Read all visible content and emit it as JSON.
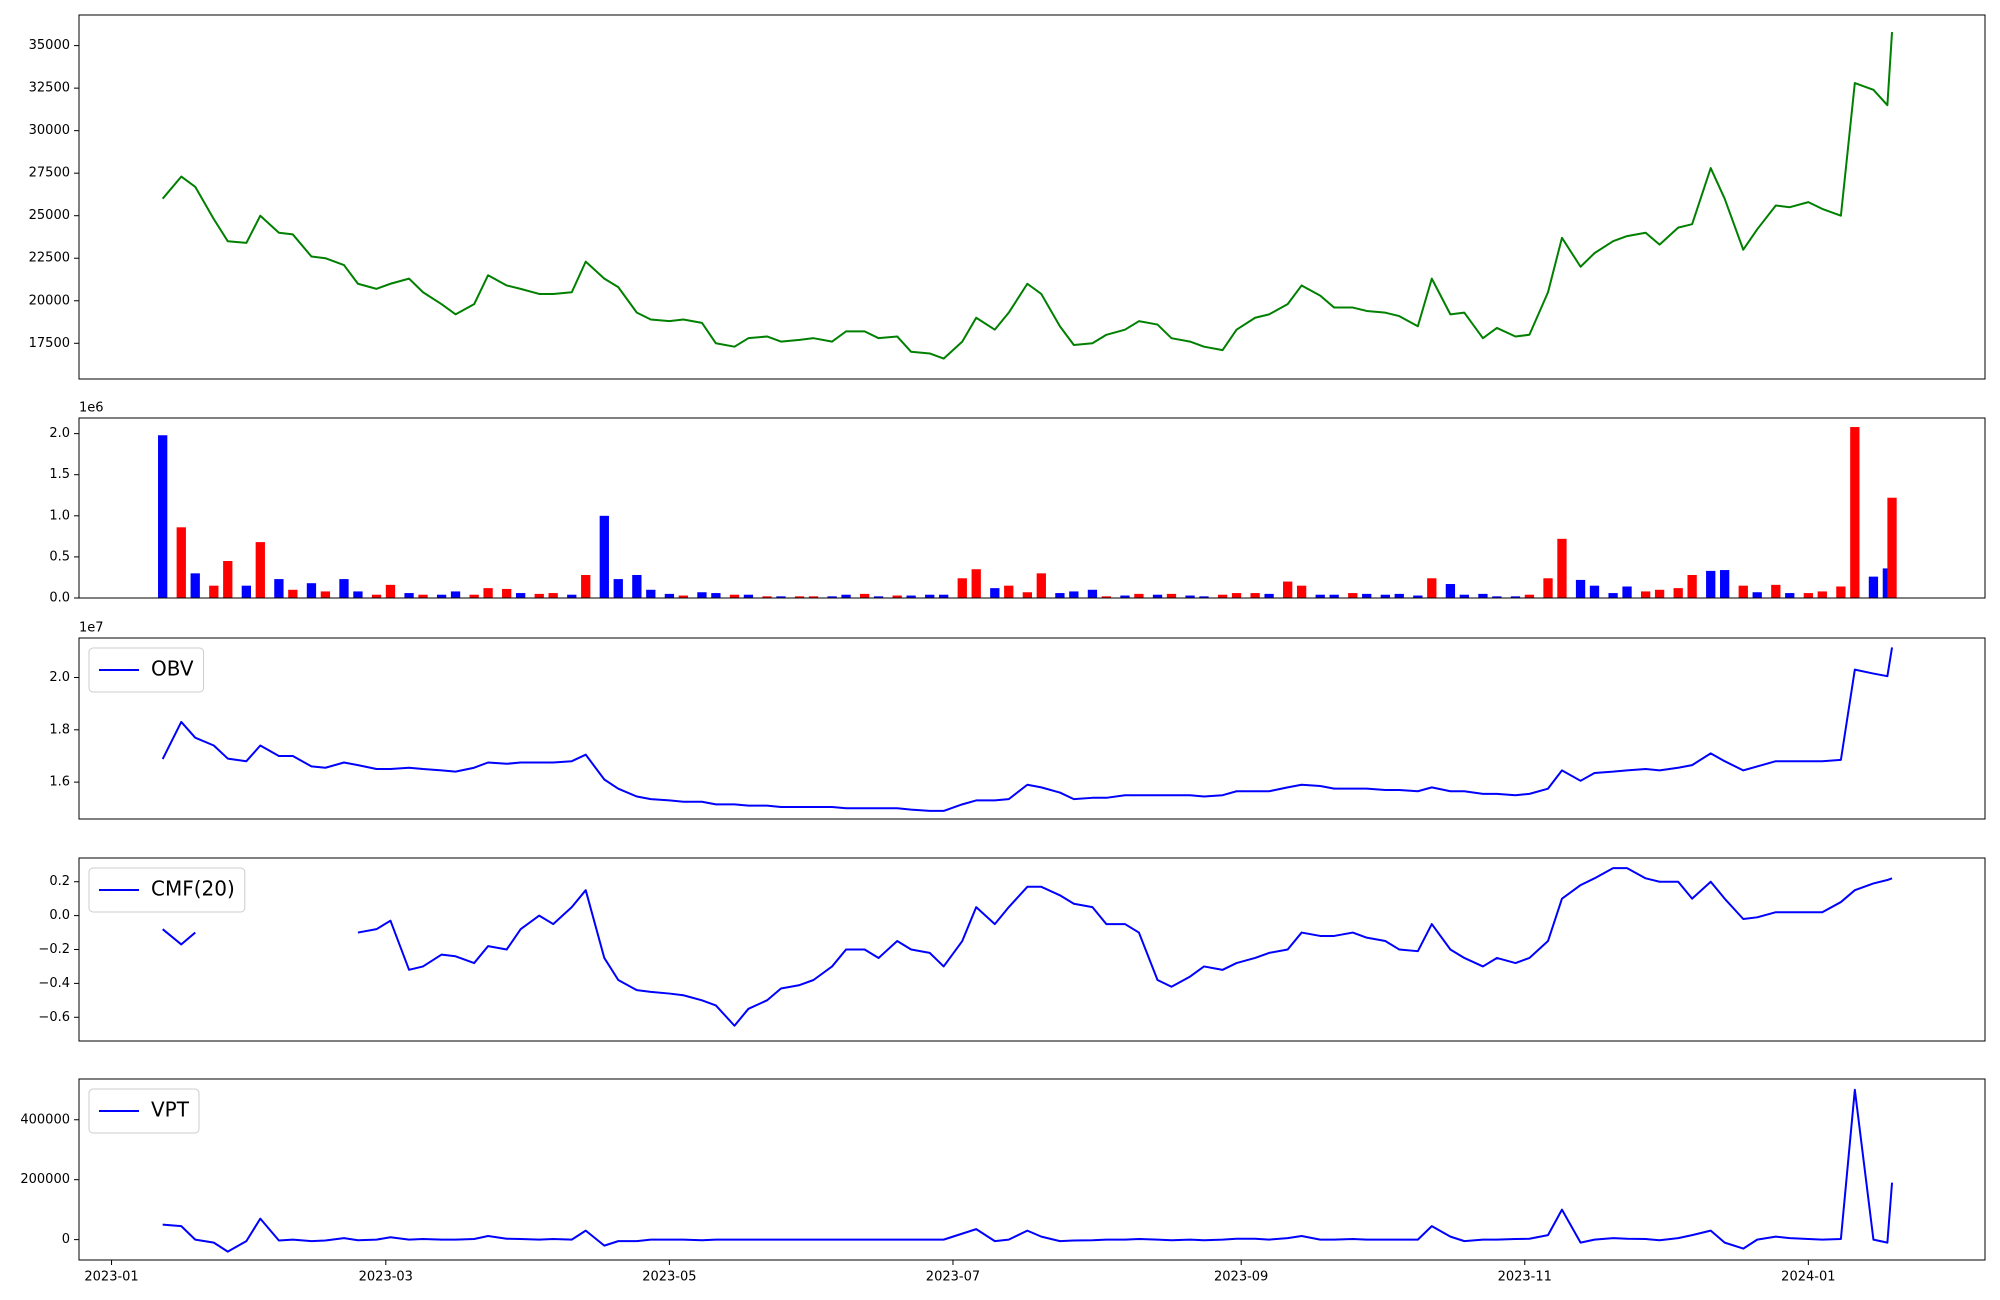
{
  "chart_data": [
    {
      "type": "line",
      "ylim": [
        15400,
        36800
      ],
      "yticks": [
        17500,
        20000,
        22500,
        25000,
        27500,
        30000,
        32500,
        35000
      ],
      "series": [
        {
          "color": "#008000",
          "values": [
            26000,
            27300,
            26700,
            24800,
            23500,
            23400,
            25000,
            24000,
            23900,
            22600,
            22500,
            22100,
            21000,
            20700,
            21000,
            21300,
            20500,
            19800,
            19200,
            19800,
            21500,
            20900,
            20700,
            20400,
            20400,
            20500,
            22300,
            21300,
            20800,
            19300,
            18900,
            18800,
            18900,
            18700,
            17500,
            17300,
            17800,
            17900,
            17600,
            17700,
            17800,
            17600,
            18200,
            18200,
            17800,
            17900,
            17000,
            16900,
            16600,
            17600,
            19000,
            18300,
            19300,
            21000,
            20400,
            18500,
            17400,
            17500,
            18000,
            18300,
            18800,
            18600,
            17800,
            17600,
            17300,
            17100,
            18300,
            19000,
            19200,
            19800,
            20900,
            20300,
            19600,
            19600,
            19400,
            19300,
            19100,
            18500,
            21300,
            19200,
            19300,
            17800,
            18400,
            17900,
            18000,
            20500,
            23700,
            22000,
            22800,
            23500,
            23800,
            24000,
            23300,
            24300,
            24500,
            27800,
            26000,
            23000,
            24200,
            25600,
            25500,
            25800,
            25400,
            25000,
            32800,
            32400,
            31500,
            35800
          ]
        }
      ]
    },
    {
      "type": "bar",
      "ylim": [
        0,
        2190000
      ],
      "y_offset_label": "1e6",
      "yticks": [
        {
          "value": 0,
          "label": "0.0"
        },
        {
          "value": 500000,
          "label": "0.5"
        },
        {
          "value": 1000000,
          "label": "1.0"
        },
        {
          "value": 1500000,
          "label": "1.5"
        },
        {
          "value": 2000000,
          "label": "2.0"
        }
      ],
      "values": [
        1980000,
        860000,
        300000,
        150000,
        450000,
        150000,
        680000,
        230000,
        100000,
        180000,
        80000,
        230000,
        80000,
        40000,
        160000,
        60000,
        40000,
        40000,
        80000,
        40000,
        120000,
        110000,
        60000,
        50000,
        60000,
        40000,
        280000,
        1000000,
        230000,
        280000,
        100000,
        50000,
        30000,
        70000,
        60000,
        40000,
        40000,
        20000,
        20000,
        20000,
        20000,
        20000,
        40000,
        50000,
        20000,
        30000,
        30000,
        40000,
        40000,
        240000,
        350000,
        120000,
        150000,
        70000,
        300000,
        60000,
        80000,
        100000,
        20000,
        30000,
        50000,
        40000,
        50000,
        30000,
        20000,
        40000,
        60000,
        60000,
        50000,
        200000,
        150000,
        40000,
        40000,
        60000,
        50000,
        40000,
        50000,
        30000,
        240000,
        170000,
        40000,
        50000,
        20000,
        20000,
        40000,
        240000,
        720000,
        220000,
        150000,
        60000,
        140000,
        80000,
        100000,
        120000,
        280000,
        330000,
        340000,
        150000,
        70000,
        160000,
        60000,
        60000,
        80000,
        140000,
        2080000,
        260000,
        360000,
        1220000
      ],
      "colors": [
        "#0000ff",
        "#ff0000",
        "#0000ff",
        "#ff0000",
        "#ff0000",
        "#0000ff",
        "#ff0000",
        "#0000ff",
        "#ff0000",
        "#0000ff",
        "#ff0000",
        "#0000ff",
        "#0000ff",
        "#ff0000",
        "#ff0000",
        "#0000ff",
        "#ff0000",
        "#0000ff",
        "#0000ff",
        "#ff0000",
        "#ff0000",
        "#ff0000",
        "#0000ff",
        "#ff0000",
        "#ff0000",
        "#0000ff",
        "#ff0000",
        "#0000ff",
        "#0000ff",
        "#0000ff",
        "#0000ff",
        "#0000ff",
        "#ff0000",
        "#0000ff",
        "#0000ff",
        "#ff0000",
        "#0000ff",
        "#ff0000",
        "#0000ff",
        "#ff0000",
        "#ff0000",
        "#0000ff",
        "#0000ff",
        "#ff0000",
        "#0000ff",
        "#ff0000",
        "#0000ff",
        "#0000ff",
        "#0000ff",
        "#ff0000",
        "#ff0000",
        "#0000ff",
        "#ff0000",
        "#ff0000",
        "#ff0000",
        "#0000ff",
        "#0000ff",
        "#0000ff",
        "#ff0000",
        "#0000ff",
        "#ff0000",
        "#0000ff",
        "#ff0000",
        "#0000ff",
        "#0000ff",
        "#ff0000",
        "#ff0000",
        "#ff0000",
        "#0000ff",
        "#ff0000",
        "#ff0000",
        "#0000ff",
        "#0000ff",
        "#ff0000",
        "#0000ff",
        "#0000ff",
        "#0000ff",
        "#0000ff",
        "#ff0000",
        "#0000ff",
        "#0000ff",
        "#0000ff",
        "#0000ff",
        "#0000ff",
        "#ff0000",
        "#ff0000",
        "#ff0000",
        "#0000ff",
        "#0000ff",
        "#0000ff",
        "#0000ff",
        "#ff0000",
        "#ff0000",
        "#ff0000",
        "#ff0000",
        "#0000ff",
        "#0000ff",
        "#ff0000",
        "#0000ff",
        "#ff0000",
        "#0000ff",
        "#ff0000",
        "#ff0000",
        "#ff0000",
        "#ff0000",
        "#0000ff",
        "#0000ff",
        "#ff0000"
      ]
    },
    {
      "type": "line",
      "ylim": [
        14590000,
        21510000
      ],
      "y_offset_label": "1e7",
      "legend": "upper left",
      "yticks": [
        {
          "value": 16000000,
          "label": "1.6"
        },
        {
          "value": 18000000,
          "label": "1.8"
        },
        {
          "value": 20000000,
          "label": "2.0"
        }
      ],
      "series": [
        {
          "name": "OBV",
          "color": "#0000ff",
          "values": [
            16880000,
            18300000,
            17700000,
            17400000,
            16900000,
            16800000,
            17400000,
            17000000,
            17000000,
            16600000,
            16550000,
            16750000,
            16650000,
            16500000,
            16500000,
            16550000,
            16500000,
            16450000,
            16400000,
            16550000,
            16750000,
            16700000,
            16750000,
            16750000,
            16750000,
            16800000,
            17050000,
            16100000,
            15750000,
            15450000,
            15350000,
            15300000,
            15250000,
            15250000,
            15150000,
            15150000,
            15100000,
            15100000,
            15050000,
            15050000,
            15050000,
            15050000,
            15000000,
            15000000,
            15000000,
            15000000,
            14950000,
            14900000,
            14900000,
            15150000,
            15300000,
            15300000,
            15350000,
            15900000,
            15800000,
            15600000,
            15350000,
            15400000,
            15400000,
            15500000,
            15500000,
            15500000,
            15500000,
            15500000,
            15450000,
            15500000,
            15650000,
            15650000,
            15650000,
            15800000,
            15900000,
            15850000,
            15750000,
            15750000,
            15750000,
            15700000,
            15700000,
            15650000,
            15800000,
            15650000,
            15650000,
            15550000,
            15550000,
            15500000,
            15550000,
            15750000,
            16450000,
            16050000,
            16350000,
            16400000,
            16450000,
            16500000,
            16450000,
            16550000,
            16650000,
            17100000,
            16800000,
            16450000,
            16600000,
            16800000,
            16800000,
            16800000,
            16800000,
            16850000,
            20300000,
            20150000,
            20050000,
            21150000
          ]
        }
      ]
    },
    {
      "type": "line",
      "ylim": [
        -0.74,
        0.34
      ],
      "legend": "upper left",
      "yticks": [
        {
          "value": -0.6,
          "label": "−0.6"
        },
        {
          "value": -0.4,
          "label": "−0.4"
        },
        {
          "value": -0.2,
          "label": "−0.2"
        },
        {
          "value": 0,
          "label": "0.0"
        },
        0.2
      ],
      "series": [
        {
          "name": "CMF(20)",
          "color": "#0000ff",
          "values": [
            -0.08,
            -0.17,
            -0.1,
            null,
            null,
            null,
            null,
            null,
            null,
            null,
            null,
            null,
            -0.1,
            -0.08,
            -0.03,
            -0.32,
            -0.3,
            -0.23,
            -0.24,
            -0.28,
            -0.18,
            -0.2,
            -0.08,
            0,
            -0.05,
            0.05,
            0.15,
            -0.25,
            -0.38,
            -0.44,
            -0.45,
            -0.46,
            -0.47,
            -0.5,
            -0.53,
            -0.65,
            -0.55,
            -0.5,
            -0.43,
            -0.41,
            -0.38,
            -0.3,
            -0.2,
            -0.2,
            -0.25,
            -0.15,
            -0.2,
            -0.22,
            -0.3,
            -0.15,
            0.05,
            -0.05,
            0.05,
            0.17,
            0.17,
            0.12,
            0.07,
            0.05,
            -0.05,
            -0.05,
            -0.1,
            -0.38,
            -0.42,
            -0.36,
            -0.3,
            -0.32,
            -0.28,
            -0.25,
            -0.22,
            -0.2,
            -0.1,
            -0.12,
            -0.12,
            -0.1,
            -0.13,
            -0.15,
            -0.2,
            -0.21,
            -0.05,
            -0.2,
            -0.25,
            -0.3,
            -0.25,
            -0.28,
            -0.25,
            -0.15,
            0.1,
            0.18,
            0.22,
            0.28,
            0.28,
            0.22,
            0.2,
            0.2,
            0.1,
            0.2,
            0.1,
            -0.02,
            -0.01,
            0.02,
            0.02,
            0.02,
            0.02,
            0.08,
            0.15,
            0.19,
            0.21,
            0.22
          ]
        }
      ]
    },
    {
      "type": "line",
      "ylim": [
        -68000,
        536000
      ],
      "yticks": [
        0,
        200000,
        400000
      ],
      "legend": "upper left",
      "xlim": [
        "2022-12-25",
        "2024-02-08"
      ],
      "xticks": [
        "2023-01",
        "2023-03",
        "2023-05",
        "2023-07",
        "2023-09",
        "2023-11",
        "2024-01"
      ],
      "x": [
        "2023-01-12",
        "2023-01-16",
        "2023-01-19",
        "2023-01-23",
        "2023-01-26",
        "2023-01-30",
        "2023-02-02",
        "2023-02-06",
        "2023-02-09",
        "2023-02-13",
        "2023-02-16",
        "2023-02-20",
        "2023-02-23",
        "2023-02-27",
        "2023-03-02",
        "2023-03-06",
        "2023-03-09",
        "2023-03-13",
        "2023-03-16",
        "2023-03-20",
        "2023-03-23",
        "2023-03-27",
        "2023-03-30",
        "2023-04-03",
        "2023-04-06",
        "2023-04-10",
        "2023-04-13",
        "2023-04-17",
        "2023-04-20",
        "2023-04-24",
        "2023-04-27",
        "2023-05-01",
        "2023-05-04",
        "2023-05-08",
        "2023-05-11",
        "2023-05-15",
        "2023-05-18",
        "2023-05-22",
        "2023-05-25",
        "2023-05-29",
        "2023-06-01",
        "2023-06-05",
        "2023-06-08",
        "2023-06-12",
        "2023-06-15",
        "2023-06-19",
        "2023-06-22",
        "2023-06-26",
        "2023-06-29",
        "2023-07-03",
        "2023-07-06",
        "2023-07-10",
        "2023-07-13",
        "2023-07-17",
        "2023-07-20",
        "2023-07-24",
        "2023-07-27",
        "2023-07-31",
        "2023-08-03",
        "2023-08-07",
        "2023-08-10",
        "2023-08-14",
        "2023-08-17",
        "2023-08-21",
        "2023-08-24",
        "2023-08-28",
        "2023-08-31",
        "2023-09-04",
        "2023-09-07",
        "2023-09-11",
        "2023-09-14",
        "2023-09-18",
        "2023-09-21",
        "2023-09-25",
        "2023-09-28",
        "2023-10-02",
        "2023-10-05",
        "2023-10-09",
        "2023-10-12",
        "2023-10-16",
        "2023-10-19",
        "2023-10-23",
        "2023-10-26",
        "2023-10-30",
        "2023-11-02",
        "2023-11-06",
        "2023-11-09",
        "2023-11-13",
        "2023-11-16",
        "2023-11-20",
        "2023-11-23",
        "2023-11-27",
        "2023-11-30",
        "2023-12-04",
        "2023-12-07",
        "2023-12-11",
        "2023-12-14",
        "2023-12-18",
        "2023-12-21",
        "2023-12-25",
        "2023-12-28",
        "2024-01-01",
        "2024-01-04",
        "2024-01-08",
        "2024-01-11",
        "2024-01-15",
        "2024-01-18",
        "2024-01-19"
      ],
      "series": [
        {
          "name": "VPT",
          "color": "#0000ff",
          "values": [
            50000,
            45000,
            0,
            -10000,
            -40000,
            -5000,
            70000,
            -3000,
            0,
            -5000,
            -3000,
            5000,
            -2000,
            0,
            8000,
            0,
            2000,
            0,
            0,
            2000,
            12000,
            3000,
            2000,
            0,
            2000,
            0,
            30000,
            -20000,
            -5000,
            -5000,
            0,
            0,
            0,
            -2000,
            0,
            0,
            0,
            0,
            0,
            0,
            0,
            0,
            0,
            0,
            0,
            0,
            0,
            0,
            0,
            20000,
            35000,
            -5000,
            0,
            30000,
            10000,
            -5000,
            -3000,
            -2000,
            0,
            0,
            2000,
            0,
            -2000,
            0,
            -2000,
            0,
            3000,
            3000,
            0,
            5000,
            12000,
            0,
            0,
            2000,
            0,
            0,
            0,
            0,
            45000,
            10000,
            -5000,
            0,
            0,
            2000,
            3000,
            15000,
            100000,
            -10000,
            0,
            5000,
            3000,
            2000,
            -2000,
            5000,
            15000,
            30000,
            -10000,
            -30000,
            0,
            10000,
            5000,
            2000,
            0,
            2000,
            500000,
            0,
            -10000,
            190000
          ]
        }
      ]
    }
  ]
}
